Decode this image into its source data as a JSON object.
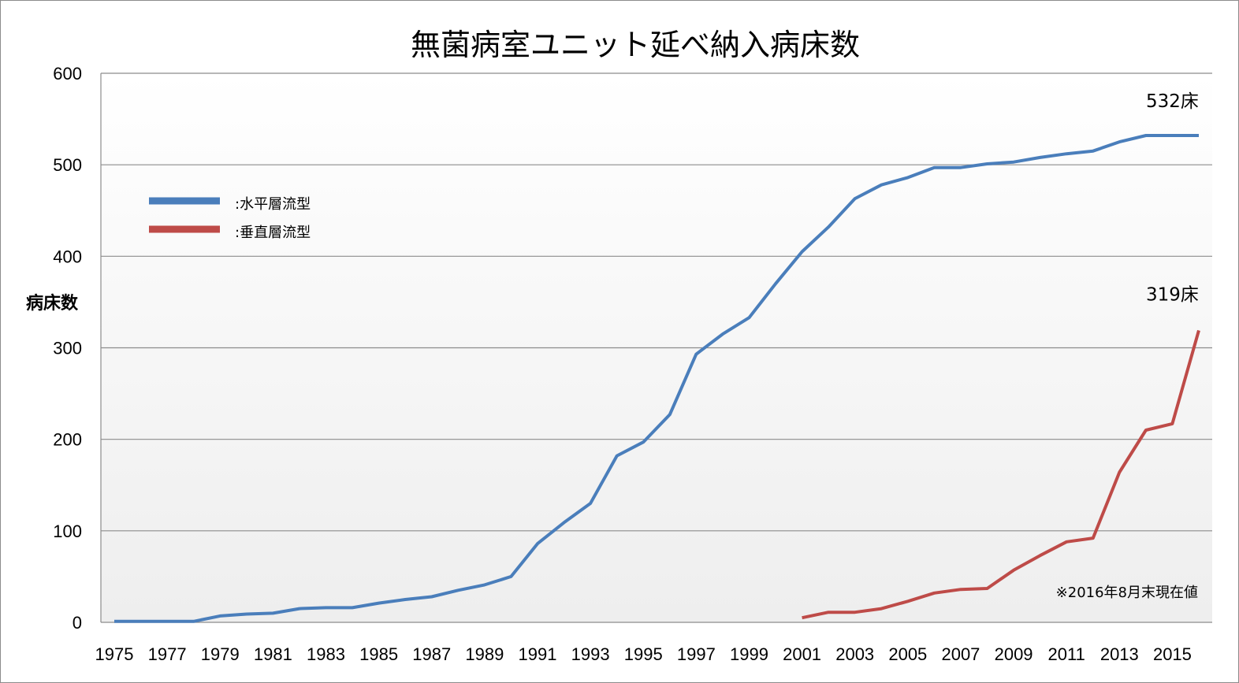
{
  "chart_data": {
    "type": "line",
    "title": "無菌病室ユニット延べ納入病床数",
    "ylabel": "病床数",
    "xlabel": "",
    "ylim": [
      0,
      600
    ],
    "yticks": [
      0,
      100,
      200,
      300,
      400,
      500,
      600
    ],
    "xticks": [
      1975,
      1977,
      1979,
      1981,
      1983,
      1985,
      1987,
      1989,
      1991,
      1993,
      1995,
      1997,
      1999,
      2001,
      2003,
      2005,
      2007,
      2009,
      2011,
      2013,
      2015
    ],
    "x": [
      1975,
      1976,
      1977,
      1978,
      1979,
      1980,
      1981,
      1982,
      1983,
      1984,
      1985,
      1986,
      1987,
      1988,
      1989,
      1990,
      1991,
      1992,
      1993,
      1994,
      1995,
      1996,
      1997,
      1998,
      1999,
      2000,
      2001,
      2002,
      2003,
      2004,
      2005,
      2006,
      2007,
      2008,
      2009,
      2010,
      2011,
      2012,
      2013,
      2014,
      2015,
      2016
    ],
    "grid": true,
    "legend_position": "top-left",
    "series": [
      {
        "name": "水平層流型",
        "legend_label": ":水平層流型",
        "color": "#4a7ebb",
        "values": [
          1,
          1,
          1,
          1,
          7,
          9,
          10,
          15,
          16,
          16,
          21,
          25,
          28,
          35,
          41,
          50,
          86,
          109,
          130,
          182,
          197,
          227,
          293,
          315,
          333,
          370,
          405,
          432,
          463,
          478,
          486,
          497,
          497,
          501,
          503,
          508,
          512,
          515,
          525,
          532,
          532,
          532
        ]
      },
      {
        "name": "垂直層流型",
        "legend_label": ":垂直層流型",
        "color": "#be4b48",
        "values": [
          null,
          null,
          null,
          null,
          null,
          null,
          null,
          null,
          null,
          null,
          null,
          null,
          null,
          null,
          null,
          null,
          null,
          null,
          null,
          null,
          null,
          null,
          null,
          null,
          null,
          null,
          5,
          11,
          11,
          15,
          23,
          32,
          36,
          37,
          57,
          73,
          88,
          92,
          164,
          210,
          217,
          319
        ]
      }
    ],
    "annotations": [
      {
        "text": "532床",
        "x": 2015,
        "y": 532
      },
      {
        "text": "319床",
        "x": 2015,
        "y": 319
      }
    ],
    "note": "※2016年8月末現在値"
  }
}
